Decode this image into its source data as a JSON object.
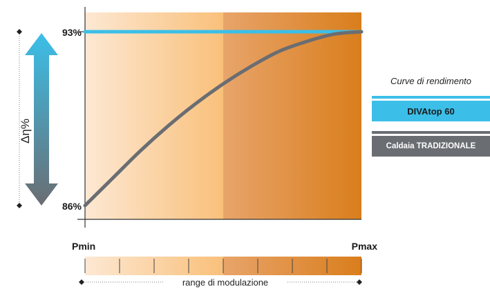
{
  "chart_data": {
    "type": "line",
    "ylabel": "Δη%",
    "y_ticks": [
      "93%",
      "86%"
    ],
    "ylim": [
      86,
      93
    ],
    "x_ticks": [
      "Pmin",
      "Pmax"
    ],
    "xlim": [
      0,
      1
    ],
    "series": [
      {
        "name": "DIVAtop 60",
        "color": "#3bbfe8",
        "x": [
          0,
          1
        ],
        "y": [
          93,
          93
        ]
      },
      {
        "name": "Caldaia TRADIZIONALE",
        "color": "#6a6d72",
        "x": [
          0,
          0.1,
          0.2,
          0.3,
          0.4,
          0.5,
          0.6,
          0.7,
          0.8,
          0.9,
          1.0
        ],
        "y": [
          86.0,
          87.1,
          88.2,
          89.2,
          90.1,
          90.9,
          91.6,
          92.2,
          92.6,
          92.9,
          93.0
        ]
      }
    ],
    "bands": {
      "left_color_from": "#fde8d3",
      "left_color_to": "#f9c07a",
      "right_color_from": "#e8a46a",
      "right_color_to": "#d97e1c"
    },
    "scale_ticks": 7,
    "range_label": "range di modulazione",
    "legend": {
      "title": "Curve di rendimento",
      "position": "right"
    }
  }
}
